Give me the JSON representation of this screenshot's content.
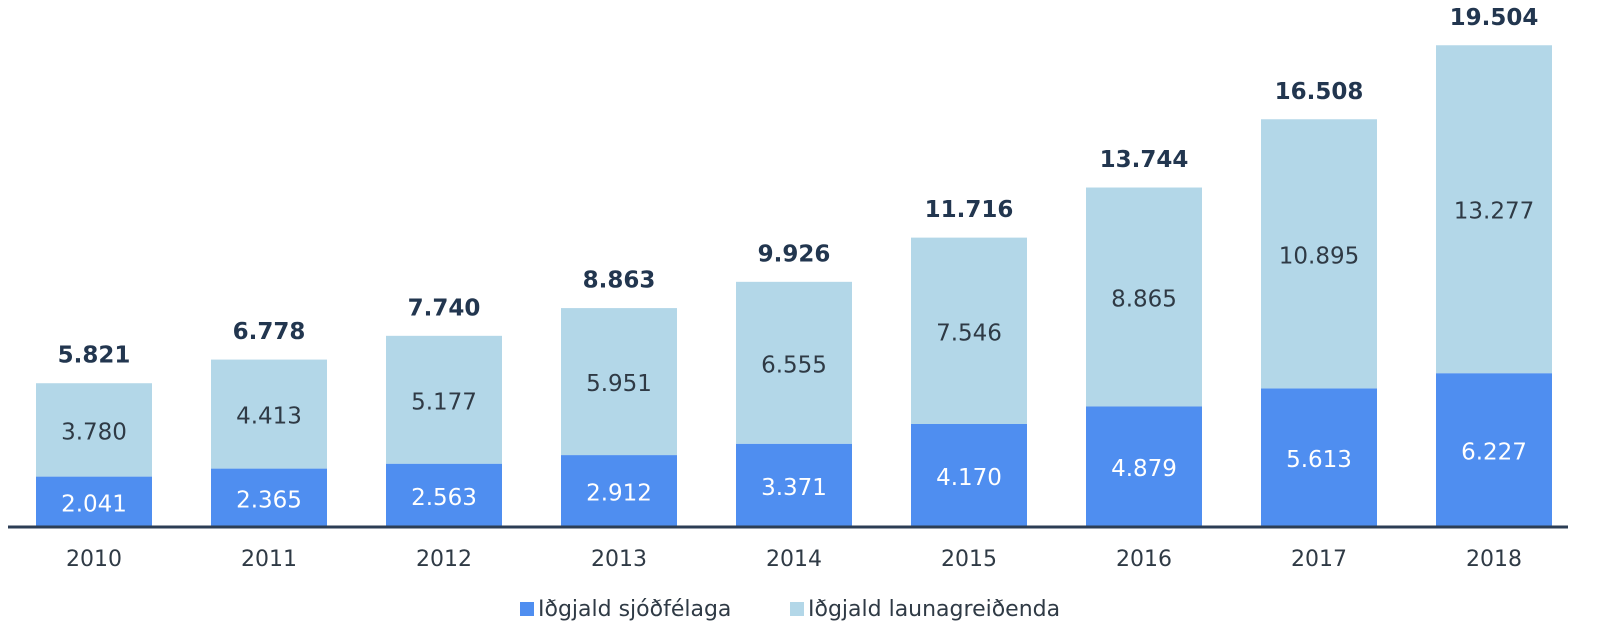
{
  "chart_data": {
    "type": "stacked_bar",
    "categories": [
      "2010",
      "2011",
      "2012",
      "2013",
      "2014",
      "2015",
      "2016",
      "2017",
      "2018"
    ],
    "series": [
      {
        "name": "Iðgjald sjóðfélaga",
        "color": "#4f8ef0",
        "values": [
          2041,
          2365,
          2563,
          2912,
          3371,
          4170,
          4879,
          5613,
          6227
        ],
        "value_labels": [
          "2.041",
          "2.365",
          "2.563",
          "2.912",
          "3.371",
          "4.170",
          "4.879",
          "5.613",
          "6.227"
        ]
      },
      {
        "name": "Iðgjald launagreiðenda",
        "color": "#b3d7e8",
        "values": [
          3780,
          4413,
          5177,
          5951,
          6555,
          7546,
          8865,
          10895,
          13277
        ],
        "value_labels": [
          "3.780",
          "4.413",
          "5.177",
          "5.951",
          "6.555",
          "7.546",
          "8.865",
          "10.895",
          "13.277"
        ]
      }
    ],
    "totals": {
      "values": [
        5821,
        6778,
        7740,
        8863,
        9926,
        11716,
        13744,
        16508,
        19504
      ],
      "value_labels": [
        "5.821",
        "6.778",
        "7.740",
        "8.863",
        "9.926",
        "11.716",
        "13.744",
        "16.508",
        "19.504"
      ]
    },
    "ylim": [
      0,
      20000
    ]
  }
}
